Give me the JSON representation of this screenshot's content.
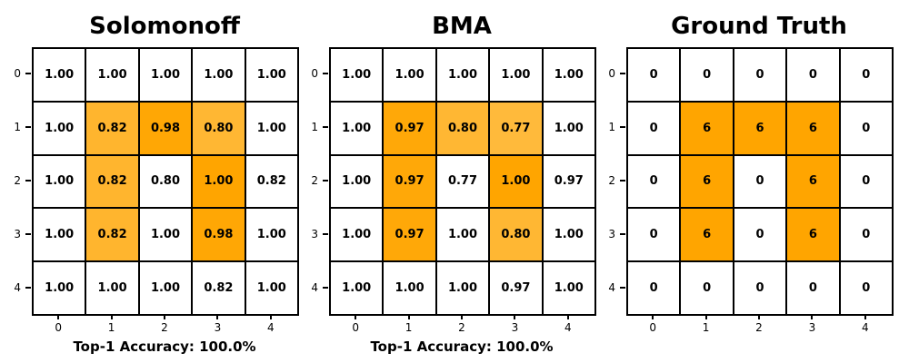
{
  "figure": {
    "background": "#FFFFFF",
    "text_color": "#000000",
    "grid_border_color": "#000000",
    "highlight_color": "#FFA500"
  },
  "chart_data": [
    {
      "type": "heatmap",
      "title": "Solomonoff",
      "xlabel": "Top-1 Accuracy: 100.0%",
      "row_labels": [
        "0",
        "1",
        "2",
        "3",
        "4"
      ],
      "col_labels": [
        "0",
        "1",
        "2",
        "3",
        "4"
      ],
      "decimals": 2,
      "vmax": 1.0,
      "values": [
        [
          1.0,
          1.0,
          1.0,
          1.0,
          1.0
        ],
        [
          1.0,
          0.82,
          0.98,
          0.8,
          1.0
        ],
        [
          1.0,
          0.82,
          0.8,
          1.0,
          0.82
        ],
        [
          1.0,
          0.82,
          1.0,
          0.98,
          1.0
        ],
        [
          1.0,
          1.0,
          1.0,
          0.82,
          1.0
        ]
      ],
      "highlight_mask": [
        [
          0,
          0,
          0,
          0,
          0
        ],
        [
          0,
          1,
          1,
          1,
          0
        ],
        [
          0,
          1,
          0,
          1,
          0
        ],
        [
          0,
          1,
          0,
          1,
          0
        ],
        [
          0,
          0,
          0,
          0,
          0
        ]
      ],
      "highlight_color": "#FFA500"
    },
    {
      "type": "heatmap",
      "title": "BMA",
      "xlabel": "Top-1 Accuracy: 100.0%",
      "row_labels": [
        "0",
        "1",
        "2",
        "3",
        "4"
      ],
      "col_labels": [
        "0",
        "1",
        "2",
        "3",
        "4"
      ],
      "decimals": 2,
      "vmax": 1.0,
      "values": [
        [
          1.0,
          1.0,
          1.0,
          1.0,
          1.0
        ],
        [
          1.0,
          0.97,
          0.8,
          0.77,
          1.0
        ],
        [
          1.0,
          0.97,
          0.77,
          1.0,
          0.97
        ],
        [
          1.0,
          0.97,
          1.0,
          0.8,
          1.0
        ],
        [
          1.0,
          1.0,
          1.0,
          0.97,
          1.0
        ]
      ],
      "highlight_mask": [
        [
          0,
          0,
          0,
          0,
          0
        ],
        [
          0,
          1,
          1,
          1,
          0
        ],
        [
          0,
          1,
          0,
          1,
          0
        ],
        [
          0,
          1,
          0,
          1,
          0
        ],
        [
          0,
          0,
          0,
          0,
          0
        ]
      ],
      "highlight_color": "#FFA500"
    },
    {
      "type": "heatmap",
      "title": "Ground Truth",
      "xlabel": "",
      "row_labels": [
        "0",
        "1",
        "2",
        "3",
        "4"
      ],
      "col_labels": [
        "0",
        "1",
        "2",
        "3",
        "4"
      ],
      "decimals": 0,
      "vmax": 6,
      "values": [
        [
          0,
          0,
          0,
          0,
          0
        ],
        [
          0,
          6,
          6,
          6,
          0
        ],
        [
          0,
          6,
          0,
          6,
          0
        ],
        [
          0,
          6,
          0,
          6,
          0
        ],
        [
          0,
          0,
          0,
          0,
          0
        ]
      ],
      "highlight_mask": [
        [
          0,
          0,
          0,
          0,
          0
        ],
        [
          0,
          1,
          1,
          1,
          0
        ],
        [
          0,
          1,
          0,
          1,
          0
        ],
        [
          0,
          1,
          0,
          1,
          0
        ],
        [
          0,
          0,
          0,
          0,
          0
        ]
      ],
      "highlight_color": "#FFA500"
    }
  ]
}
